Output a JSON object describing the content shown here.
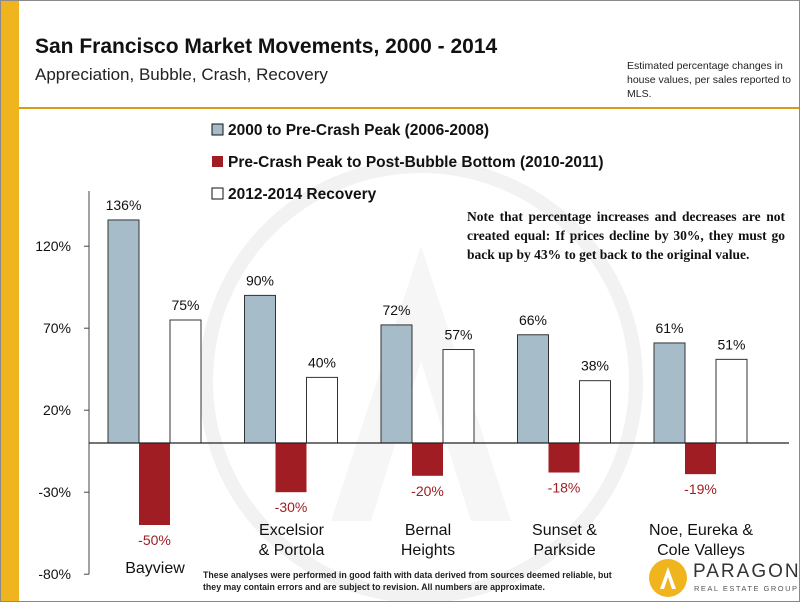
{
  "title": "San Francisco Market Movements, 2000 - 2014",
  "subtitle": "Appreciation, Bubble, Crash, Recovery",
  "top_note": "Estimated percentage changes in house values, per sales reported to MLS.",
  "note": "Note that percentage increases and decreases are not created equal: If prices decline by 30%, they must go back up by 43% to get back to the original value.",
  "footer_note": "These analyses were performed in good faith with data derived from sources deemed reliable, but they may contain errors and are subject to revision. All numbers are approximate.",
  "logo": {
    "name": "PARAGON",
    "tagline": "REAL ESTATE GROUP"
  },
  "colors": {
    "series1": "#a6bcc8",
    "series2": "#a01e23",
    "series3": "#ffffff",
    "accent": "#f0b51e"
  },
  "chart_data": {
    "type": "bar",
    "categories": [
      "Bayview",
      "Excelsior & Portola",
      "Bernal Heights",
      "Sunset & Parkside",
      "Noe, Eureka & Cole Valleys"
    ],
    "category_lines": [
      [
        "Bayview"
      ],
      [
        "Excelsior",
        "& Portola"
      ],
      [
        "Bernal",
        "Heights"
      ],
      [
        "Sunset &",
        "Parkside"
      ],
      [
        "Noe, Eureka &",
        "Cole Valleys"
      ]
    ],
    "series": [
      {
        "name": "2000 to Pre-Crash Peak (2006-2008)",
        "values": [
          136,
          90,
          72,
          66,
          61
        ],
        "labels": [
          "136%",
          "90%",
          "72%",
          "66%",
          "61%"
        ]
      },
      {
        "name": "Pre-Crash Peak to Post-Bubble Bottom (2010-2011)",
        "values": [
          -50,
          -30,
          -20,
          -18,
          -19
        ],
        "labels": [
          "-50%",
          "-30%",
          "-20%",
          "-18%",
          "-19%"
        ]
      },
      {
        "name": "2012-2014 Recovery",
        "values": [
          75,
          40,
          57,
          38,
          51
        ],
        "labels": [
          "75%",
          "40%",
          "57%",
          "38%",
          "51%"
        ]
      }
    ],
    "yticks": [
      120,
      70,
      20,
      -30,
      -80
    ],
    "ytick_labels": [
      "120%",
      "70%",
      "20%",
      "-30%",
      "-80%"
    ],
    "ylim": [
      -80,
      140
    ],
    "legend_position": "top-center",
    "grid": false
  }
}
